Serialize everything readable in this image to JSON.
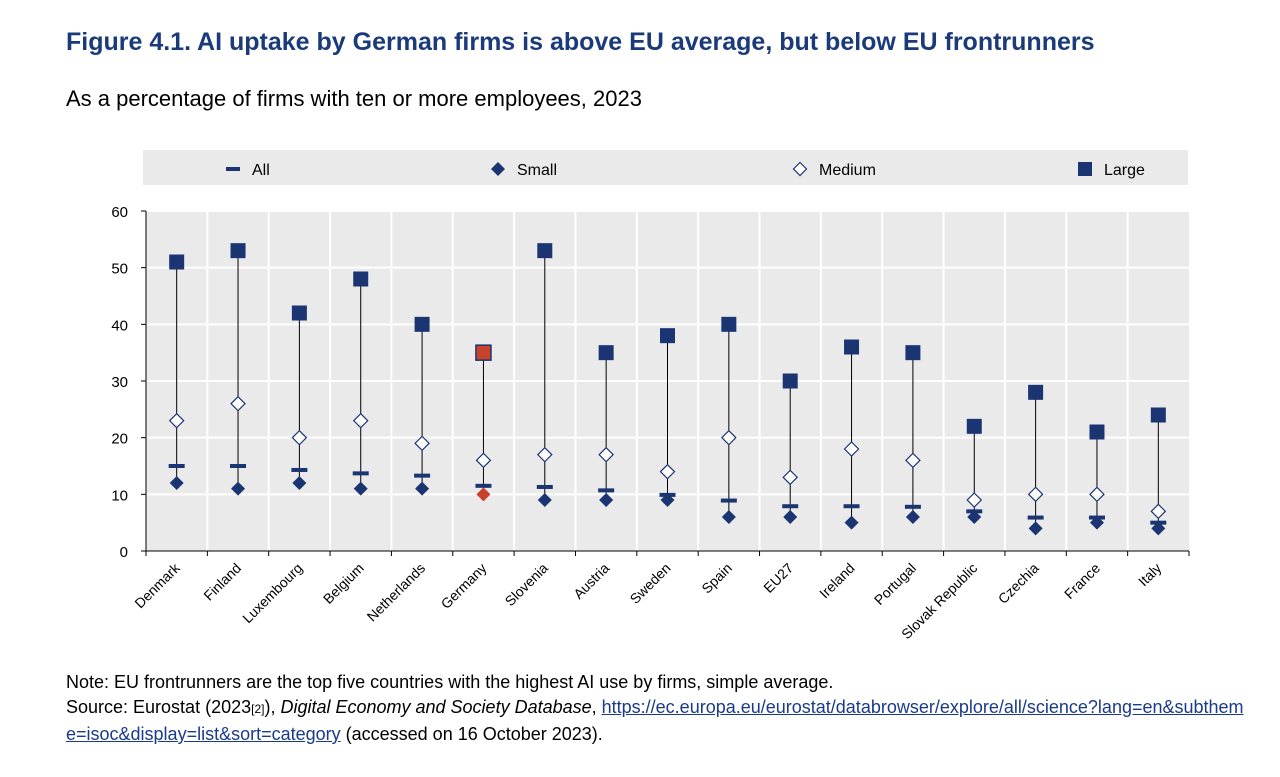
{
  "title": "Figure 4.1. AI uptake by German firms is above EU average, but below EU frontrunners",
  "subtitle": "As a percentage of firms with ten or more employees, 2023",
  "colors": {
    "navy": "#1b3572",
    "highlight": "#c8432c",
    "title": "#1a3a7a",
    "plot_bg": "#eaeaea",
    "grid": "#ffffff"
  },
  "chart_data": {
    "type": "scatter",
    "title": "",
    "xlabel": "",
    "ylabel": "",
    "ylim": [
      0,
      60
    ],
    "yticks": [
      0,
      10,
      20,
      30,
      40,
      50,
      60
    ],
    "grid": true,
    "legend_position": "top",
    "highlight_category": "Germany",
    "categories": [
      "Denmark",
      "Finland",
      "Luxembourg",
      "Belgium",
      "Netherlands",
      "Germany",
      "Slovenia",
      "Austria",
      "Sweden",
      "Spain",
      "EU27",
      "Ireland",
      "Portugal",
      "Slovak Republic",
      "Czechia",
      "France",
      "Italy"
    ],
    "series": [
      {
        "name": "All",
        "marker": "dash",
        "values": [
          15,
          15,
          14.3,
          13.7,
          13.3,
          11.5,
          11.3,
          10.7,
          9.9,
          8.9,
          7.9,
          7.9,
          7.8,
          7.0,
          5.9,
          5.9,
          5.0
        ]
      },
      {
        "name": "Small",
        "marker": "diamond-filled",
        "values": [
          12,
          11,
          12,
          11,
          11,
          10,
          9,
          9,
          9,
          6,
          6,
          5,
          6,
          6,
          4,
          5,
          4
        ]
      },
      {
        "name": "Medium",
        "marker": "diamond-open",
        "values": [
          23,
          26,
          20,
          23,
          19,
          16,
          17,
          17,
          14,
          20,
          13,
          18,
          16,
          9,
          10,
          10,
          7
        ]
      },
      {
        "name": "Large",
        "marker": "square",
        "values": [
          51,
          53,
          42,
          48,
          40,
          35,
          53,
          35,
          38,
          40,
          30,
          36,
          35,
          22,
          28,
          21,
          24
        ]
      }
    ]
  },
  "notes": {
    "note": "Note: EU frontrunners are the top five countries with the highest AI use by firms, simple average.",
    "source_prefix": "Source: Eurostat (2023",
    "source_ref": "[2]",
    "source_after_ref": "), ",
    "source_database": "Digital Economy and Society Database",
    "source_comma": ", ",
    "source_url": "https://ec.europa.eu/eurostat/databrowser/explore/all/science?lang=en&subtheme=isoc&display=list&sort=category",
    "source_accessed": " (accessed on 16 October 2023)."
  }
}
